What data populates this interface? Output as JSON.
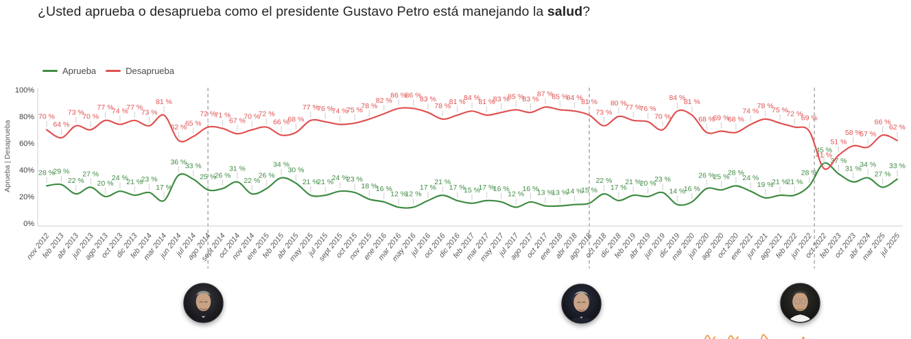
{
  "title": {
    "prefix": "¿Usted aprueba o desaprueba como el presidente Gustavo Petro está manejando la ",
    "bold": "salud",
    "suffix": "?"
  },
  "legend": [
    {
      "label": "Aprueba",
      "color": "#3d8b41"
    },
    {
      "label": "Desaprueba",
      "color": "#e05050"
    }
  ],
  "y_axis_title": "Aprueba | Desaprueba",
  "colors": {
    "approve": "#3d8b41",
    "disapprove": "#e05050",
    "axis": "#cfcfcf",
    "dashed_marker": "#adadad",
    "leader_tick": "#cccccc",
    "tick_text": "#3c3c3c",
    "x_label_text": "#5a5a5a"
  },
  "chart_data": {
    "type": "line",
    "title": "¿Usted aprueba o desaprueba como el presidente Gustavo Petro está manejando la salud?",
    "xlabel": "",
    "ylabel": "Aprueba | Desaprueba",
    "ylim": [
      0,
      100
    ],
    "y_ticks": [
      "0%",
      "20%",
      "40%",
      "60%",
      "80%",
      "100%"
    ],
    "grid": false,
    "legend_position": "top-left",
    "value_suffix": " %",
    "categories": [
      "nov 2012",
      "feb 2013",
      "abr 2013",
      "jun 2013",
      "ago 2013",
      "oct 2013",
      "dic 2013",
      "feb 2014",
      "mar 2014",
      "jun 2014",
      "jul 2014",
      "ago 2014",
      "sept 2014",
      "oct 2014",
      "nov 2014",
      "ene 2015",
      "feb 2015",
      "abr 2015",
      "may 2015",
      "jul 2015",
      "sept 2015",
      "oct 2015",
      "nov 2015",
      "ene 2016",
      "mar 2016",
      "may 2016",
      "jul 2016",
      "oct 2016",
      "dic 2016",
      "feb 2017",
      "mar 2017",
      "may 2017",
      "jul 2017",
      "ago 2017",
      "oct 2017",
      "ene 2018",
      "abr 2018",
      "ago 2018",
      "oct 2018",
      "dic 2018",
      "feb 2019",
      "abr 2019",
      "jun 2019",
      "dic 2019",
      "mar 2020",
      "jun 2020",
      "ago 2020",
      "oct 2020",
      "ene 2021",
      "jun 2021",
      "ago 2021",
      "feb 2022",
      "jun 2022",
      "oct 2022",
      "feb 2023",
      "oct 2023",
      "abr 2024",
      "mar 2025",
      "jul 2025"
    ],
    "series": [
      {
        "name": "Aprueba",
        "color": "#3d8b41",
        "values": [
          28,
          29,
          22,
          27,
          20,
          24,
          21,
          23,
          17,
          36,
          33,
          25,
          26,
          31,
          22,
          26,
          34,
          30,
          21,
          21,
          24,
          23,
          18,
          16,
          12,
          12,
          17,
          21,
          17,
          15,
          17,
          16,
          12,
          16,
          13,
          13,
          14,
          15,
          22,
          17,
          21,
          20,
          23,
          14,
          16,
          26,
          25,
          28,
          24,
          19,
          21,
          21,
          28,
          45,
          37,
          31,
          34,
          27,
          33
        ]
      },
      {
        "name": "Desaprueba",
        "color": "#e05050",
        "values": [
          70,
          64,
          73,
          70,
          77,
          74,
          77,
          73,
          81,
          62,
          65,
          72,
          71,
          67,
          70,
          72,
          66,
          68,
          77,
          76,
          74,
          75,
          78,
          82,
          86,
          86,
          83,
          78,
          81,
          84,
          81,
          83,
          85,
          83,
          87,
          85,
          84,
          81,
          73,
          80,
          77,
          76,
          70,
          84,
          81,
          68,
          69,
          68,
          74,
          78,
          75,
          72,
          69,
          41,
          51,
          58,
          57,
          66,
          62
        ]
      }
    ],
    "term_markers": [
      {
        "at_category": "ago 2014",
        "index": 11
      },
      {
        "at_category": "ago 2018",
        "index": 37
      },
      {
        "between_categories": [
          "jun 2022",
          "oct 2022"
        ],
        "index": 52.35
      }
    ]
  },
  "avatars": [
    {
      "name": "Juan Manuel Santos"
    },
    {
      "name": "Iván Duque"
    },
    {
      "name": "Gustavo Petro"
    }
  ]
}
